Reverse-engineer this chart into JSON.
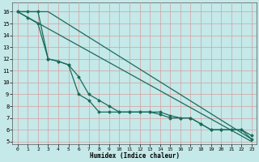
{
  "title": "",
  "xlabel": "Humidex (Indice chaleur)",
  "bg_color": "#c5e8e8",
  "grid_color": "#aad4d4",
  "line_color": "#1a6b5a",
  "xlim": [
    -0.5,
    23.5
  ],
  "ylim": [
    4.8,
    16.8
  ],
  "xticks": [
    0,
    1,
    2,
    3,
    4,
    5,
    6,
    7,
    8,
    9,
    10,
    11,
    12,
    13,
    14,
    15,
    16,
    17,
    18,
    19,
    20,
    21,
    22,
    23
  ],
  "yticks": [
    5,
    6,
    7,
    8,
    9,
    10,
    11,
    12,
    13,
    14,
    15,
    16
  ],
  "series": [
    {
      "x": [
        0,
        23
      ],
      "y": [
        16,
        5
      ],
      "marker": null,
      "markersize": 0,
      "linewidth": 0.9
    },
    {
      "x": [
        0,
        1,
        2,
        3,
        4,
        5,
        6,
        7,
        8,
        9,
        10,
        11,
        12,
        13,
        14,
        15,
        16,
        17,
        18,
        19,
        20,
        21,
        22,
        23
      ],
      "y": [
        16,
        16,
        16,
        12,
        11.8,
        11.5,
        9.0,
        8.5,
        7.5,
        7.5,
        7.5,
        7.5,
        7.5,
        7.5,
        7.5,
        7.2,
        7.0,
        7.0,
        6.5,
        6.0,
        6.0,
        6.0,
        6.0,
        5.2
      ],
      "marker": "D",
      "markersize": 1.5,
      "linewidth": 0.9
    },
    {
      "x": [
        0,
        1,
        2,
        3,
        4,
        5,
        6,
        7,
        8,
        9,
        10,
        11,
        12,
        13,
        14,
        15,
        16,
        17,
        18,
        19,
        20,
        21,
        22,
        23
      ],
      "y": [
        16,
        15.5,
        15.0,
        12.0,
        11.8,
        11.5,
        10.5,
        9.0,
        8.5,
        8.0,
        7.5,
        7.5,
        7.5,
        7.5,
        7.3,
        7.0,
        7.0,
        7.0,
        6.5,
        6.0,
        6.0,
        6.0,
        6.0,
        5.5
      ],
      "marker": "D",
      "markersize": 1.5,
      "linewidth": 0.9
    },
    {
      "x": [
        0,
        3,
        23
      ],
      "y": [
        16,
        16,
        5.2
      ],
      "marker": null,
      "markersize": 0,
      "linewidth": 0.9
    }
  ]
}
